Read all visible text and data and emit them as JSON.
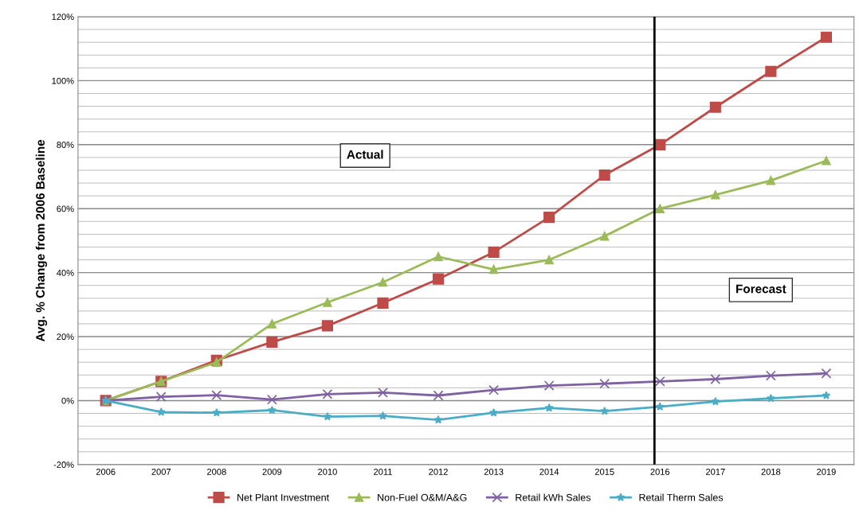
{
  "chart_data": {
    "type": "line",
    "ylabel": "Avg. % Change from 2006 Baseline",
    "x": [
      2006,
      2007,
      2008,
      2009,
      2010,
      2011,
      2012,
      2013,
      2014,
      2015,
      2016,
      2017,
      2018,
      2019
    ],
    "xlim": [
      2005.5,
      2019.5
    ],
    "xticks": [
      2006,
      2007,
      2008,
      2009,
      2010,
      2011,
      2012,
      2013,
      2014,
      2015,
      2016,
      2017,
      2018,
      2019
    ],
    "ylim": [
      -20,
      120
    ],
    "yticks": [
      {
        "value": -20,
        "label": "-20%"
      },
      {
        "value": -16,
        "label": null
      },
      {
        "value": -12,
        "label": null
      },
      {
        "value": -8,
        "label": null
      },
      {
        "value": -4,
        "label": null
      },
      {
        "value": 0,
        "label": "0%"
      },
      {
        "value": 4,
        "label": null
      },
      {
        "value": 8,
        "label": null
      },
      {
        "value": 12,
        "label": null
      },
      {
        "value": 16,
        "label": null
      },
      {
        "value": 20,
        "label": "20%"
      },
      {
        "value": 24,
        "label": null
      },
      {
        "value": 28,
        "label": null
      },
      {
        "value": 32,
        "label": null
      },
      {
        "value": 36,
        "label": null
      },
      {
        "value": 40,
        "label": "40%"
      },
      {
        "value": 44,
        "label": null
      },
      {
        "value": 48,
        "label": null
      },
      {
        "value": 52,
        "label": null
      },
      {
        "value": 56,
        "label": null
      },
      {
        "value": 60,
        "label": "60%"
      },
      {
        "value": 64,
        "label": null
      },
      {
        "value": 68,
        "label": null
      },
      {
        "value": 72,
        "label": null
      },
      {
        "value": 76,
        "label": null
      },
      {
        "value": 80,
        "label": "80%"
      },
      {
        "value": 84,
        "label": null
      },
      {
        "value": 88,
        "label": null
      },
      {
        "value": 92,
        "label": null
      },
      {
        "value": 96,
        "label": null
      },
      {
        "value": 100,
        "label": "100%"
      },
      {
        "value": 104,
        "label": null
      },
      {
        "value": 108,
        "label": null
      },
      {
        "value": 112,
        "label": null
      },
      {
        "value": 116,
        "label": null
      },
      {
        "value": 120,
        "label": "120%"
      }
    ],
    "grid": "y",
    "legend": "bottom",
    "line_style": "solid",
    "series": [
      {
        "name": "Net Plant Investment",
        "color": "#be4b48",
        "marker": "square",
        "values": [
          0,
          6,
          12.6,
          18.3,
          23.4,
          30.5,
          38,
          46.4,
          57.3,
          70.5,
          80,
          91.7,
          102.9,
          113.6
        ]
      },
      {
        "name": "Non-Fuel O&M/A&G",
        "color": "#9bbb59",
        "marker": "triangle",
        "values": [
          0,
          6,
          12,
          24,
          30.7,
          37,
          45,
          41,
          44,
          51.4,
          60,
          64.3,
          68.8,
          75
        ]
      },
      {
        "name": "Retail kWh Sales",
        "color": "#7f62a1",
        "marker": "cross",
        "values": [
          0,
          1.2,
          1.7,
          0.3,
          2,
          2.5,
          1.6,
          3.3,
          4.7,
          5.3,
          6,
          6.7,
          7.8,
          8.5
        ]
      },
      {
        "name": "Retail Therm Sales",
        "color": "#4bacc6",
        "marker": "star",
        "values": [
          0,
          -3.6,
          -3.8,
          -3,
          -5,
          -4.8,
          -6,
          -3.8,
          -2.3,
          -3.3,
          -1.9,
          -0.3,
          0.7,
          1.6
        ]
      }
    ],
    "ref_lines": [
      {
        "axis": "x",
        "value": 2015.9,
        "color": "#000000",
        "line_style": "solid"
      }
    ],
    "annotations": [
      "Actual",
      "Forecast"
    ]
  }
}
